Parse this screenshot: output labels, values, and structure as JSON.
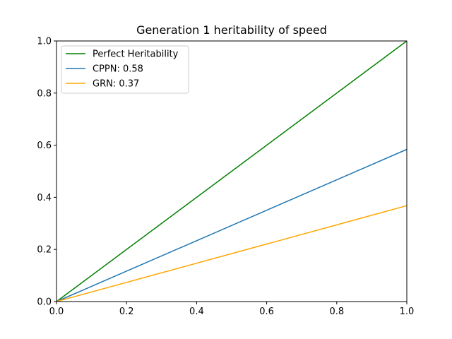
{
  "chart_data": {
    "type": "line",
    "title": "Generation 1 heritability of speed",
    "xlabel": "",
    "ylabel": "",
    "xlim": [
      0.0,
      1.0
    ],
    "ylim": [
      0.0,
      1.0
    ],
    "x_ticks": [
      0.0,
      0.2,
      0.4,
      0.6,
      0.8,
      1.0
    ],
    "y_ticks": [
      0.0,
      0.2,
      0.4,
      0.6,
      0.8,
      1.0
    ],
    "x_tick_labels": [
      "0.0",
      "0.2",
      "0.4",
      "0.6",
      "0.8",
      "1.0"
    ],
    "y_tick_labels": [
      "0.0",
      "0.2",
      "0.4",
      "0.6",
      "0.8",
      "1.0"
    ],
    "grid": false,
    "legend_position": "top-left",
    "series": [
      {
        "name": "Perfect Heritability",
        "color": "#008000",
        "x": [
          0.0,
          1.0
        ],
        "y": [
          0.0,
          1.0
        ]
      },
      {
        "name": "CPPN: 0.58",
        "color": "#1f77b4",
        "x": [
          0.0,
          1.0
        ],
        "y": [
          0.0,
          0.584
        ]
      },
      {
        "name": "GRN: 0.37",
        "color": "#ffa500",
        "x": [
          0.0,
          1.0
        ],
        "y": [
          0.0,
          0.368
        ]
      }
    ]
  }
}
